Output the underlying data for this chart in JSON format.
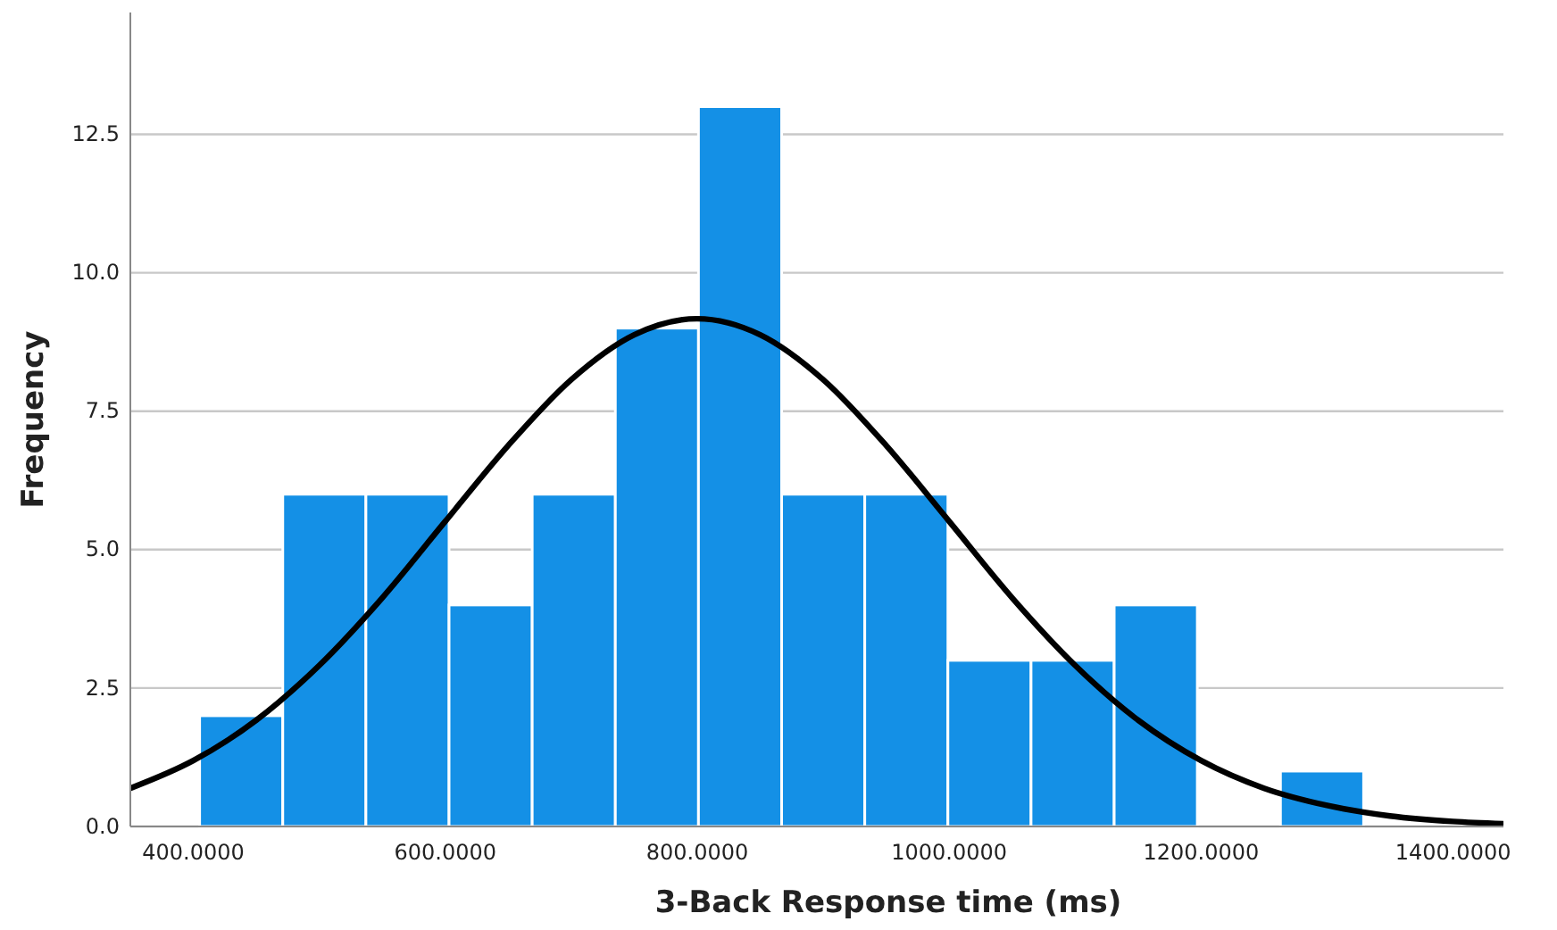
{
  "chart_data": {
    "type": "histogram",
    "xlabel": "3-Back Response time  (ms)",
    "ylabel": "Frequency",
    "bins": [
      405,
      471,
      537,
      603,
      669,
      735,
      801,
      867,
      933,
      999,
      1065,
      1131,
      1197,
      1263,
      1329
    ],
    "values": [
      2,
      6,
      6,
      4,
      6,
      9,
      13,
      6,
      6,
      3,
      3,
      4,
      0,
      1
    ],
    "color": "#1490e6",
    "series": [
      {
        "type": "line",
        "color": "#000000",
        "x": [
          350,
          400,
          450,
          500,
          550,
          600,
          650,
          700,
          750,
          800,
          850,
          900,
          950,
          1000,
          1050,
          1100,
          1150,
          1200,
          1250,
          1300,
          1350,
          1400,
          1440
        ],
        "values": [
          0.69,
          1.19,
          1.92,
          2.91,
          4.13,
          5.51,
          6.88,
          8.07,
          8.88,
          9.17,
          8.88,
          8.07,
          6.88,
          5.51,
          4.13,
          2.91,
          1.92,
          1.19,
          0.69,
          0.38,
          0.19,
          0.09,
          0.05
        ]
      }
    ],
    "xlim": [
      350,
      1440
    ],
    "xticks": [
      {
        "value": 400,
        "label": "400.0000"
      },
      {
        "value": 600,
        "label": "600.0000"
      },
      {
        "value": 800,
        "label": "800.0000"
      },
      {
        "value": 1000,
        "label": "1000.0000"
      },
      {
        "value": 1200,
        "label": "1200.0000"
      },
      {
        "value": 1400,
        "label": "1400.0000"
      }
    ],
    "ylim": [
      0,
      14.7
    ],
    "yticks": [
      {
        "value": 0,
        "label": "0.0"
      },
      {
        "value": 2.5,
        "label": "2.5"
      },
      {
        "value": 5,
        "label": "5.0"
      },
      {
        "value": 7.5,
        "label": "7.5"
      },
      {
        "value": 10,
        "label": "10.0"
      },
      {
        "value": 12.5,
        "label": "12.5"
      }
    ],
    "grid": "y"
  }
}
